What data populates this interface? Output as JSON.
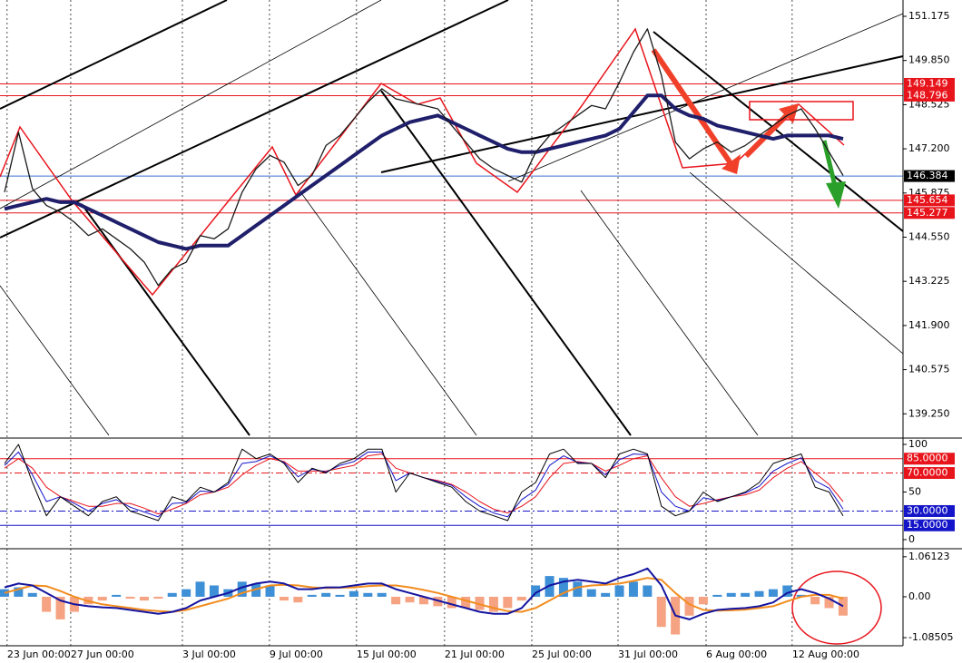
{
  "chart_data": [
    {
      "type": "line",
      "ylim": [
        138.55,
        151.665
      ],
      "yticks": [
        151.175,
        {
          "value": 149.85,
          "label": "149.850"
        },
        148.525,
        {
          "value": 147.2,
          "label": "147.200"
        },
        145.875,
        {
          "value": 144.55,
          "label": "144.550"
        },
        143.225,
        {
          "value": 141.9,
          "label": "141.900"
        },
        140.575,
        {
          "value": 139.25,
          "label": "139.250"
        }
      ],
      "levels": [
        {
          "value": 149.149,
          "color": "#e8141b"
        },
        {
          "value": 148.796,
          "color": "#e8141b"
        },
        {
          "value": 146.384,
          "color": "#000000",
          "line_color": "#3b6fd1"
        },
        {
          "value": 145.654,
          "color": "#e8141b"
        },
        {
          "value": 145.277,
          "color": "#e8141b"
        }
      ],
      "series": [
        {
          "color": "#1f1f6b",
          "width": 4,
          "values": [
            145.4,
            145.5,
            145.6,
            145.7,
            145.6,
            145.6,
            145.4,
            145.2,
            145.0,
            144.8,
            144.6,
            144.4,
            144.3,
            144.2,
            144.3,
            144.3,
            144.3,
            144.6,
            144.9,
            145.2,
            145.5,
            145.8,
            146.1,
            146.4,
            146.7,
            147.0,
            147.3,
            147.6,
            147.8,
            148.0,
            148.1,
            148.2,
            148.0,
            147.8,
            147.6,
            147.4,
            147.2,
            147.1,
            147.1,
            147.2,
            147.3,
            147.4,
            147.5,
            147.6,
            147.8,
            148.3,
            148.8,
            148.8,
            148.4,
            148.2,
            148.1,
            147.9,
            147.8,
            147.7,
            147.6,
            147.5,
            147.6,
            147.6,
            147.6,
            147.6,
            147.5
          ]
        },
        {
          "color": "#1a1a1a",
          "width": 1.3,
          "values": [
            145.9,
            147.7,
            146.0,
            145.5,
            145.3,
            145.0,
            144.6,
            144.8,
            144.5,
            144.2,
            143.8,
            143.1,
            143.6,
            143.8,
            144.6,
            144.5,
            144.8,
            145.9,
            146.6,
            147.0,
            146.8,
            146.1,
            146.4,
            147.3,
            147.6,
            148.1,
            148.6,
            149.0,
            148.7,
            148.6,
            148.5,
            148.4,
            147.9,
            147.4,
            146.9,
            146.6,
            146.4,
            146.2,
            147.1,
            147.6,
            147.9,
            148.2,
            148.5,
            148.4,
            149.2,
            150.1,
            150.8,
            149.4,
            147.4,
            146.9,
            147.2,
            147.4,
            147.1,
            147.3,
            147.6,
            147.9,
            148.2,
            148.4,
            147.8,
            147.1,
            146.4
          ]
        }
      ]
    },
    {
      "type": "line",
      "ylim": [
        -8.6,
        105.7
      ],
      "yticks": [
        100,
        50,
        0
      ],
      "levels": [
        {
          "value": 85,
          "label": "85.0000",
          "color": "#e8141b"
        },
        {
          "value": 70,
          "label": "70.0000",
          "color": "#e8141b",
          "dash": "8 3 2 3"
        },
        {
          "value": 30,
          "label": "30.0000",
          "color": "#1414c8",
          "dash": "8 3 2 3"
        },
        {
          "value": 15,
          "label": "15.0000",
          "color": "#1414c8"
        }
      ],
      "series": [
        {
          "color": "#e8141b",
          "width": 1,
          "values": [
            75,
            85,
            75,
            55,
            45,
            40,
            35,
            35,
            38,
            38,
            33,
            27,
            32,
            38,
            47,
            50,
            55,
            68,
            78,
            85,
            82,
            72,
            72,
            72,
            75,
            78,
            88,
            90,
            75,
            70,
            65,
            62,
            58,
            50,
            40,
            32,
            28,
            35,
            45,
            65,
            80,
            82,
            80,
            72,
            78,
            85,
            88,
            65,
            45,
            35,
            38,
            42,
            45,
            47,
            52,
            65,
            75,
            82,
            70,
            58,
            40
          ]
        },
        {
          "color": "#1414c8",
          "width": 1,
          "values": [
            78,
            92,
            68,
            40,
            45,
            38,
            30,
            38,
            42,
            34,
            29,
            24,
            38,
            39,
            51,
            50,
            58,
            80,
            82,
            88,
            81,
            66,
            74,
            71,
            78,
            82,
            92,
            92,
            62,
            70,
            65,
            61,
            57,
            45,
            35,
            28,
            24,
            42,
            52,
            78,
            88,
            81,
            80,
            68,
            84,
            90,
            89,
            50,
            35,
            30,
            44,
            41,
            45,
            49,
            56,
            72,
            80,
            86,
            62,
            54,
            32
          ]
        },
        {
          "color": "#000000",
          "width": 1,
          "values": [
            80,
            100,
            60,
            25,
            45,
            35,
            25,
            40,
            45,
            30,
            25,
            20,
            45,
            40,
            55,
            50,
            60,
            95,
            85,
            90,
            80,
            60,
            75,
            70,
            80,
            85,
            95,
            95,
            50,
            70,
            65,
            60,
            55,
            40,
            30,
            25,
            20,
            50,
            60,
            90,
            95,
            80,
            80,
            65,
            90,
            95,
            90,
            35,
            25,
            30,
            50,
            40,
            45,
            50,
            60,
            80,
            85,
            90,
            55,
            50,
            25
          ]
        }
      ]
    },
    {
      "type": "bar",
      "ylim": [
        -1.3,
        1.25
      ],
      "yticks": [
        1.06123,
        {
          "value": 0,
          "label": "0.00"
        },
        -1.08505
      ],
      "color": "#3d8fd6",
      "negative_color": "#f5a383",
      "values": [
        0.2,
        0.25,
        0.1,
        -0.4,
        -0.6,
        -0.4,
        -0.2,
        -0.1,
        0.05,
        -0.05,
        -0.1,
        -0.05,
        0.1,
        0.2,
        0.4,
        0.3,
        0.2,
        0.4,
        0.35,
        0.3,
        -0.1,
        -0.15,
        0.05,
        0.1,
        0.05,
        0.15,
        0.1,
        0.1,
        -0.2,
        -0.15,
        -0.2,
        -0.25,
        -0.3,
        -0.3,
        -0.35,
        -0.4,
        -0.3,
        -0.1,
        0.3,
        0.55,
        0.5,
        0.4,
        0.2,
        0.1,
        0.3,
        0.4,
        0.3,
        -0.8,
        -1.0,
        -0.5,
        -0.2,
        0.05,
        0.1,
        0.1,
        0.15,
        0.2,
        0.3,
        0.05,
        -0.2,
        -0.3,
        -0.5
      ],
      "series": [
        {
          "color": "#f28c1e",
          "width": 2,
          "values": [
            0.1,
            0.2,
            0.3,
            0.28,
            0.15,
            0.0,
            -0.12,
            -0.2,
            -0.25,
            -0.3,
            -0.35,
            -0.38,
            -0.4,
            -0.35,
            -0.25,
            -0.15,
            -0.05,
            0.1,
            0.2,
            0.3,
            0.32,
            0.3,
            0.25,
            0.23,
            0.24,
            0.25,
            0.28,
            0.3,
            0.3,
            0.25,
            0.18,
            0.1,
            0.0,
            -0.1,
            -0.2,
            -0.3,
            -0.38,
            -0.4,
            -0.3,
            -0.1,
            0.1,
            0.25,
            0.3,
            0.32,
            0.35,
            0.42,
            0.5,
            0.45,
            0.1,
            -0.2,
            -0.35,
            -0.37,
            -0.36,
            -0.34,
            -0.3,
            -0.25,
            -0.12,
            0.0,
            0.05,
            0.05,
            -0.05
          ]
        },
        {
          "color": "#1414a0",
          "width": 2,
          "values": [
            0.25,
            0.35,
            0.3,
            0.1,
            -0.1,
            -0.2,
            -0.25,
            -0.28,
            -0.3,
            -0.35,
            -0.4,
            -0.45,
            -0.4,
            -0.3,
            -0.1,
            0.0,
            0.1,
            0.25,
            0.35,
            0.4,
            0.35,
            0.2,
            0.2,
            0.25,
            0.25,
            0.3,
            0.35,
            0.35,
            0.2,
            0.1,
            0.0,
            -0.1,
            -0.2,
            -0.3,
            -0.4,
            -0.45,
            -0.45,
            -0.3,
            0.1,
            0.3,
            0.4,
            0.45,
            0.4,
            0.35,
            0.5,
            0.6,
            0.75,
            0.3,
            -0.5,
            -0.6,
            -0.45,
            -0.35,
            -0.32,
            -0.3,
            -0.25,
            -0.15,
            0.1,
            0.2,
            0.1,
            -0.05,
            -0.25
          ]
        }
      ],
      "xlim": [
        -0.32,
        64.29
      ],
      "xticks": [
        {
          "value": 0.19,
          "label": "23 Jun 00:00"
        },
        {
          "value": 4.74,
          "label": "27 Jun 00:00"
        },
        {
          "value": 12.73,
          "label": "3 Jul 00:00"
        },
        {
          "value": 18.96,
          "label": "9 Jul 00:00"
        },
        {
          "value": 25.19,
          "label": "15 Jul 00:00"
        },
        {
          "value": 31.49,
          "label": "21 Jul 00:00"
        },
        {
          "value": 37.73,
          "label": "25 Jul 00:00"
        },
        {
          "value": 43.9,
          "label": "31 Jul 00:00"
        },
        {
          "value": 50.2,
          "label": "6 Aug 00:00"
        },
        {
          "value": 56.36,
          "label": "12 Aug 00:00"
        }
      ]
    }
  ]
}
